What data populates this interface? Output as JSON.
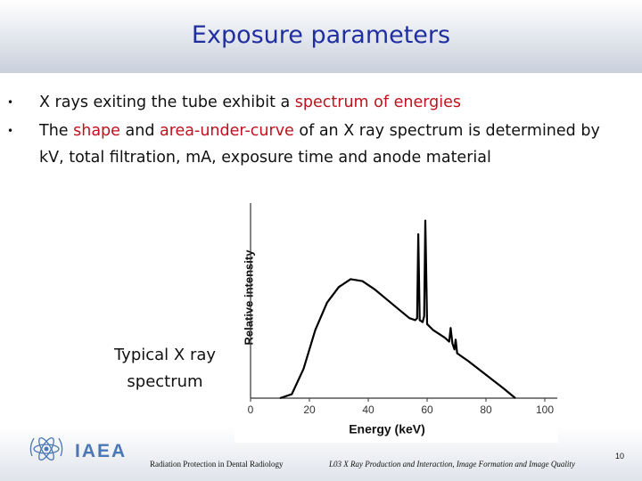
{
  "header": {
    "title": "Exposure parameters"
  },
  "bullets": [
    [
      "X rays exiting the tube exhibit a ",
      "spectrum of energies"
    ],
    [
      "The ",
      "shape",
      " and ",
      "area-under-curve",
      " of an X ray spectrum is determined by kV, total filtration, mA, exposure time and anode material"
    ]
  ],
  "caption": [
    "Typical X ray",
    "spectrum"
  ],
  "chart_data": {
    "type": "line",
    "xlabel": "Energy (keV)",
    "ylabel": "Relative intensity",
    "xlim": [
      0,
      100
    ],
    "xticks": [
      0,
      20,
      40,
      60,
      80,
      100
    ],
    "ylim": [
      0,
      1
    ],
    "x": [
      10,
      14,
      18,
      22,
      26,
      30,
      34,
      38,
      42,
      46,
      50,
      54,
      56,
      56.6,
      57,
      57.5,
      58.5,
      59,
      59.4,
      60,
      62,
      66,
      67.5,
      68,
      68.6,
      69.3,
      69.7,
      70.2,
      74,
      80,
      86,
      90
    ],
    "series": [
      {
        "name": "Relative intensity",
        "color": "#000000",
        "values": [
          0,
          0.02,
          0.15,
          0.35,
          0.49,
          0.57,
          0.61,
          0.6,
          0.56,
          0.51,
          0.46,
          0.41,
          0.4,
          0.41,
          0.84,
          0.4,
          0.39,
          0.42,
          0.91,
          0.38,
          0.35,
          0.31,
          0.29,
          0.36,
          0.28,
          0.25,
          0.3,
          0.23,
          0.19,
          0.12,
          0.05,
          0
        ]
      }
    ]
  },
  "footer": {
    "logo": "IAEA",
    "course": "Radiation Protection in Dental Radiology",
    "lecture": "L03 X Ray Production and Interaction, Image Formation and Image Quality",
    "page": "10"
  }
}
